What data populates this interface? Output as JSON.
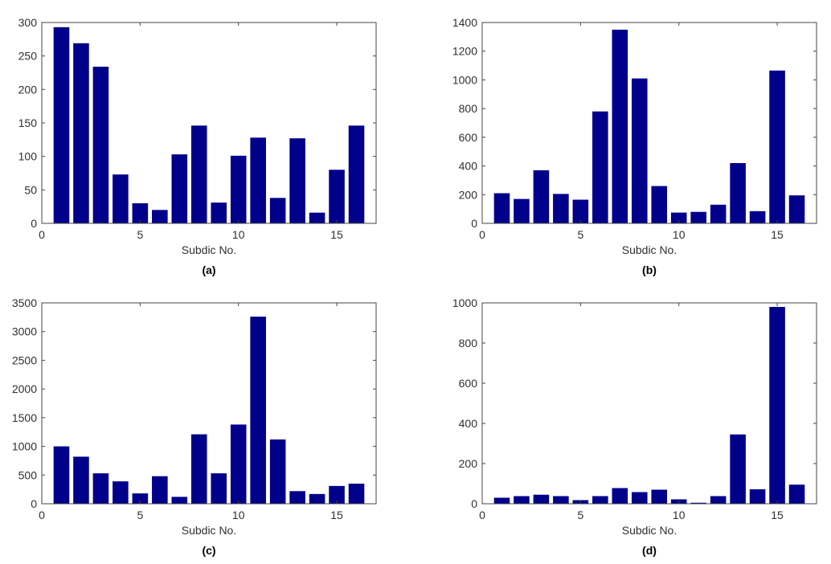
{
  "chart_data": [
    {
      "type": "bar",
      "caption": "(a)",
      "xlabel": "Subdic No.",
      "ylabel": "",
      "x": [
        1,
        2,
        3,
        4,
        5,
        6,
        7,
        8,
        9,
        10,
        11,
        12,
        13,
        14,
        15,
        16
      ],
      "values": [
        293,
        269,
        234,
        73,
        30,
        20,
        103,
        146,
        31,
        101,
        128,
        38,
        127,
        16,
        80,
        146
      ],
      "xlim": [
        0,
        17
      ],
      "ylim": [
        0,
        300
      ],
      "xticks": [
        0,
        5,
        10,
        15
      ],
      "yticks": [
        0,
        50,
        100,
        150,
        200,
        250,
        300
      ],
      "color": "#00008b"
    },
    {
      "type": "bar",
      "caption": "(b)",
      "xlabel": "Subdic No.",
      "ylabel": "",
      "x": [
        1,
        2,
        3,
        4,
        5,
        6,
        7,
        8,
        9,
        10,
        11,
        12,
        13,
        14,
        15,
        16
      ],
      "values": [
        210,
        170,
        370,
        205,
        165,
        780,
        1350,
        1010,
        260,
        75,
        80,
        130,
        420,
        85,
        1065,
        195
      ],
      "xlim": [
        0,
        17
      ],
      "ylim": [
        0,
        1400
      ],
      "xticks": [
        0,
        5,
        10,
        15
      ],
      "yticks": [
        0,
        200,
        400,
        600,
        800,
        1000,
        1200,
        1400
      ],
      "color": "#00008b"
    },
    {
      "type": "bar",
      "caption": "(c)",
      "xlabel": "Subdic No.",
      "ylabel": "",
      "x": [
        1,
        2,
        3,
        4,
        5,
        6,
        7,
        8,
        9,
        10,
        11,
        12,
        13,
        14,
        15,
        16
      ],
      "values": [
        1000,
        820,
        530,
        390,
        180,
        480,
        120,
        1210,
        530,
        1380,
        3260,
        1120,
        220,
        170,
        310,
        350
      ],
      "xlim": [
        0,
        17
      ],
      "ylim": [
        0,
        3500
      ],
      "xticks": [
        0,
        5,
        10,
        15
      ],
      "yticks": [
        0,
        500,
        1000,
        1500,
        2000,
        2500,
        3000,
        3500
      ],
      "color": "#00008b"
    },
    {
      "type": "bar",
      "caption": "(d)",
      "xlabel": "Subdic No.",
      "ylabel": "",
      "x": [
        1,
        2,
        3,
        4,
        5,
        6,
        7,
        8,
        9,
        10,
        11,
        12,
        13,
        14,
        15,
        16
      ],
      "values": [
        30,
        38,
        45,
        38,
        18,
        38,
        78,
        58,
        70,
        22,
        5,
        38,
        345,
        72,
        980,
        95
      ],
      "xlim": [
        0,
        17
      ],
      "ylim": [
        0,
        1000
      ],
      "xticks": [
        0,
        5,
        10,
        15
      ],
      "yticks": [
        0,
        200,
        400,
        600,
        800,
        1000
      ],
      "color": "#00008b"
    }
  ]
}
